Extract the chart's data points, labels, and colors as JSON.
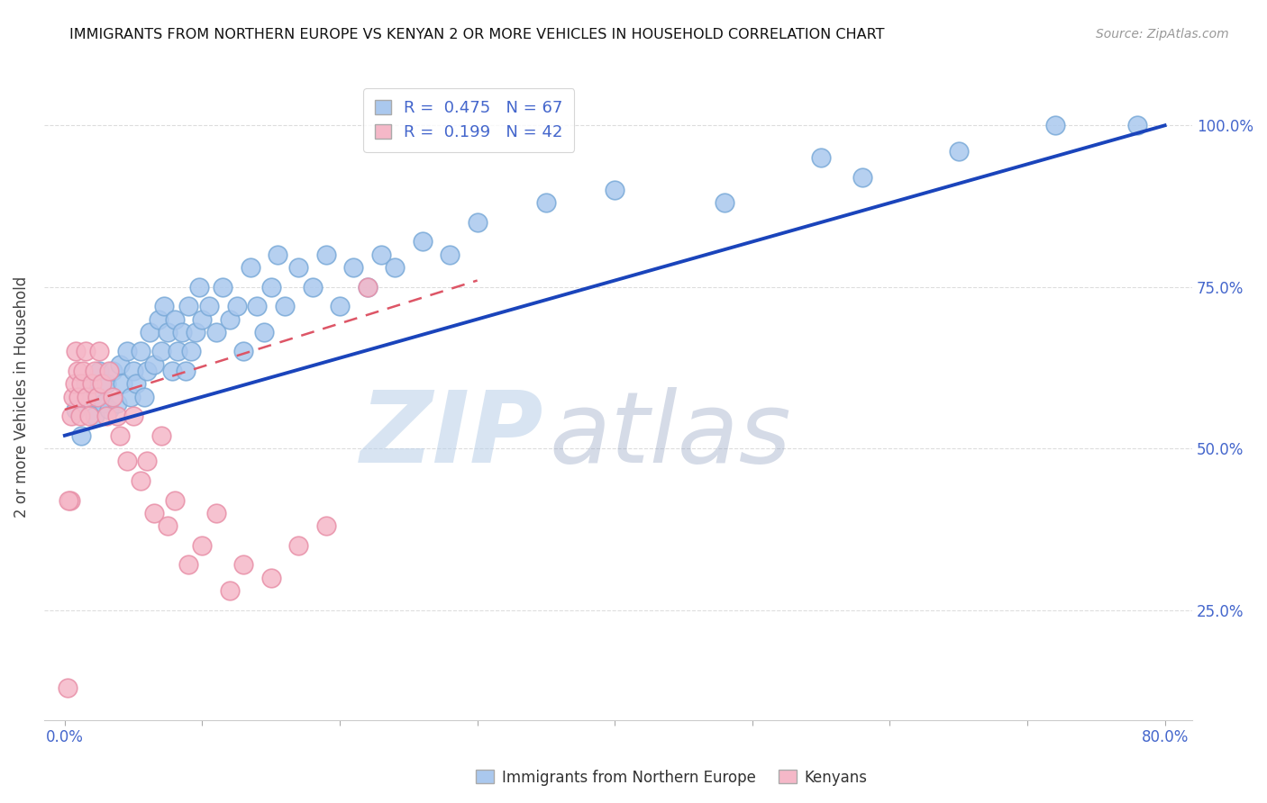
{
  "title": "IMMIGRANTS FROM NORTHERN EUROPE VS KENYAN 2 OR MORE VEHICLES IN HOUSEHOLD CORRELATION CHART",
  "source": "Source: ZipAtlas.com",
  "ylabel": "2 or more Vehicles in Household",
  "blue_R": 0.475,
  "blue_N": 67,
  "pink_R": 0.199,
  "pink_N": 42,
  "blue_color": "#aac8ee",
  "pink_color": "#f5b8c8",
  "blue_edge_color": "#7aaad8",
  "pink_edge_color": "#e890a8",
  "blue_line_color": "#1a44bb",
  "pink_line_color": "#dd5566",
  "legend_label_blue": "Immigrants from Northern Europe",
  "legend_label_pink": "Kenyans",
  "blue_scatter_x": [
    0.8,
    1.2,
    1.5,
    2.0,
    2.2,
    2.5,
    2.8,
    3.0,
    3.2,
    3.5,
    3.8,
    4.0,
    4.2,
    4.5,
    4.8,
    5.0,
    5.2,
    5.5,
    5.8,
    6.0,
    6.2,
    6.5,
    6.8,
    7.0,
    7.2,
    7.5,
    7.8,
    8.0,
    8.2,
    8.5,
    8.8,
    9.0,
    9.2,
    9.5,
    9.8,
    10.0,
    10.5,
    11.0,
    11.5,
    12.0,
    12.5,
    13.0,
    13.5,
    14.0,
    14.5,
    15.0,
    15.5,
    16.0,
    17.0,
    18.0,
    19.0,
    20.0,
    21.0,
    22.0,
    23.0,
    24.0,
    26.0,
    28.0,
    30.0,
    35.0,
    40.0,
    48.0,
    55.0,
    58.0,
    65.0,
    72.0,
    78.0
  ],
  "blue_scatter_y": [
    56.0,
    52.0,
    60.0,
    58.0,
    55.0,
    62.0,
    57.0,
    60.0,
    56.0,
    62.0,
    57.0,
    63.0,
    60.0,
    65.0,
    58.0,
    62.0,
    60.0,
    65.0,
    58.0,
    62.0,
    68.0,
    63.0,
    70.0,
    65.0,
    72.0,
    68.0,
    62.0,
    70.0,
    65.0,
    68.0,
    62.0,
    72.0,
    65.0,
    68.0,
    75.0,
    70.0,
    72.0,
    68.0,
    75.0,
    70.0,
    72.0,
    65.0,
    78.0,
    72.0,
    68.0,
    75.0,
    80.0,
    72.0,
    78.0,
    75.0,
    80.0,
    72.0,
    78.0,
    75.0,
    80.0,
    78.0,
    82.0,
    80.0,
    85.0,
    88.0,
    90.0,
    88.0,
    95.0,
    92.0,
    96.0,
    100.0,
    100.0
  ],
  "pink_scatter_x": [
    0.2,
    0.4,
    0.5,
    0.6,
    0.7,
    0.8,
    0.9,
    1.0,
    1.1,
    1.2,
    1.3,
    1.5,
    1.6,
    1.8,
    2.0,
    2.2,
    2.4,
    2.5,
    2.7,
    3.0,
    3.2,
    3.5,
    3.8,
    4.0,
    4.5,
    5.0,
    5.5,
    6.0,
    6.5,
    7.0,
    7.5,
    8.0,
    9.0,
    10.0,
    11.0,
    12.0,
    13.0,
    15.0,
    17.0,
    19.0,
    22.0,
    0.3
  ],
  "pink_scatter_y": [
    13.0,
    42.0,
    55.0,
    58.0,
    60.0,
    65.0,
    62.0,
    58.0,
    55.0,
    60.0,
    62.0,
    65.0,
    58.0,
    55.0,
    60.0,
    62.0,
    58.0,
    65.0,
    60.0,
    55.0,
    62.0,
    58.0,
    55.0,
    52.0,
    48.0,
    55.0,
    45.0,
    48.0,
    40.0,
    52.0,
    38.0,
    42.0,
    32.0,
    35.0,
    40.0,
    28.0,
    32.0,
    30.0,
    35.0,
    38.0,
    75.0,
    42.0
  ],
  "watermark_zip": "ZIP",
  "watermark_atlas": "atlas",
  "background_color": "#ffffff",
  "grid_color": "#dddddd",
  "tick_color": "#4466cc",
  "title_color": "#111111",
  "source_color": "#999999",
  "ylabel_color": "#444444",
  "xlim": [
    -1.5,
    82
  ],
  "ylim": [
    8,
    108
  ],
  "xtick_positions": [
    0,
    10,
    20,
    30,
    40,
    50,
    60,
    70,
    80
  ],
  "xticklabels_show": [
    "0.0%",
    "",
    "",
    "",
    "",
    "",
    "",
    "",
    "80.0%"
  ],
  "ytick_positions": [
    25,
    50,
    75,
    100
  ],
  "yticklabels_show": [
    "25.0%",
    "50.0%",
    "75.0%",
    "100.0%"
  ]
}
